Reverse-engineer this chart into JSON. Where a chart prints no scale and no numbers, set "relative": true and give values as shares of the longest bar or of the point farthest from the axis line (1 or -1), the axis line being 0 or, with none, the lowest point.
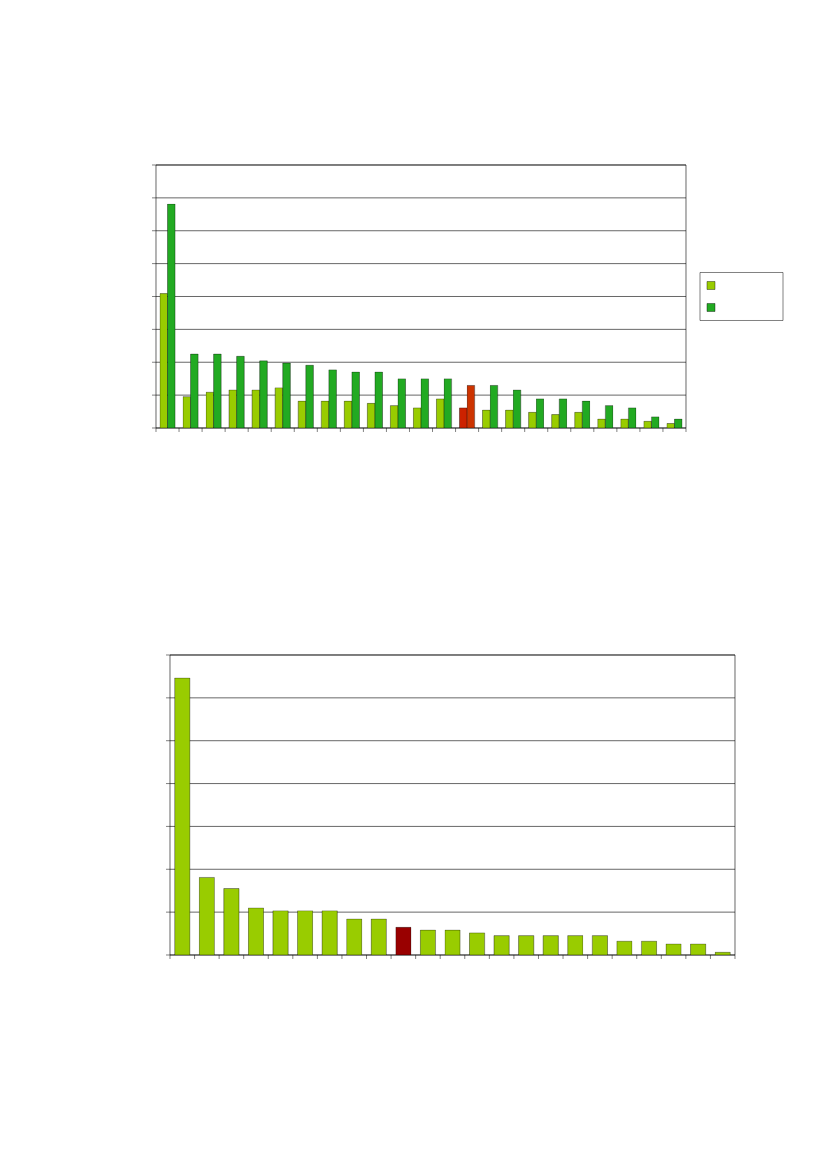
{
  "chart_data": [
    {
      "type": "bar",
      "relative": true,
      "grid": "y",
      "tick_labels": false,
      "categories": [
        null,
        null,
        null,
        null,
        null,
        null,
        null,
        null,
        null,
        null,
        null,
        null,
        null,
        null,
        null,
        null,
        null,
        null,
        null,
        null,
        null,
        null,
        null
      ],
      "series": [
        {
          "color": "#99cc00",
          "colors": [
            "#99cc00",
            "#99cc00",
            "#99cc00",
            "#99cc00",
            "#99cc00",
            "#99cc00",
            "#99cc00",
            "#99cc00",
            "#99cc00",
            "#99cc00",
            "#99cc00",
            "#99cc00",
            "#99cc00",
            "#cc2200",
            "#99cc00",
            "#99cc00",
            "#99cc00",
            "#99cc00",
            "#99cc00",
            "#99cc00",
            "#99cc00",
            "#99cc00",
            "#99cc00"
          ],
          "values": [
            0.6,
            0.14,
            0.16,
            0.17,
            0.17,
            0.18,
            0.12,
            0.12,
            0.12,
            0.11,
            0.1,
            0.09,
            0.13,
            0.09,
            0.08,
            0.08,
            0.07,
            0.06,
            0.07,
            0.04,
            0.04,
            0.03,
            0.02
          ]
        },
        {
          "color": "#22aa22",
          "colors": [
            "#22aa22",
            "#22aa22",
            "#22aa22",
            "#22aa22",
            "#22aa22",
            "#22aa22",
            "#22aa22",
            "#22aa22",
            "#22aa22",
            "#22aa22",
            "#22aa22",
            "#22aa22",
            "#22aa22",
            "#cc3300",
            "#22aa22",
            "#22aa22",
            "#22aa22",
            "#22aa22",
            "#22aa22",
            "#22aa22",
            "#22aa22",
            "#22aa22",
            "#22aa22"
          ],
          "values": [
            1,
            0.33,
            0.33,
            0.32,
            0.3,
            0.29,
            0.28,
            0.26,
            0.25,
            0.25,
            0.22,
            0.22,
            0.22,
            0.19,
            0.19,
            0.17,
            0.13,
            0.13,
            0.12,
            0.1,
            0.09,
            0.05,
            0.04
          ]
        }
      ]
    },
    {
      "type": "bar",
      "relative": true,
      "grid": "y",
      "tick_labels": false,
      "categories": [
        null,
        null,
        null,
        null,
        null,
        null,
        null,
        null,
        null,
        null,
        null,
        null,
        null,
        null,
        null,
        null,
        null,
        null,
        null,
        null,
        null,
        null,
        null
      ],
      "series": [
        {
          "colors": [
            "#99cc00",
            "#99cc00",
            "#99cc00",
            "#99cc00",
            "#99cc00",
            "#99cc00",
            "#99cc00",
            "#99cc00",
            "#99cc00",
            "#990000",
            "#99cc00",
            "#99cc00",
            "#99cc00",
            "#99cc00",
            "#99cc00",
            "#99cc00",
            "#99cc00",
            "#99cc00",
            "#99cc00",
            "#99cc00",
            "#99cc00",
            "#99cc00",
            "#99cc00"
          ],
          "values": [
            1,
            0.28,
            0.24,
            0.17,
            0.16,
            0.16,
            0.16,
            0.13,
            0.13,
            0.1,
            0.09,
            0.09,
            0.08,
            0.07,
            0.07,
            0.07,
            0.07,
            0.07,
            0.05,
            0.05,
            0.04,
            0.04,
            0.01
          ]
        }
      ]
    }
  ]
}
